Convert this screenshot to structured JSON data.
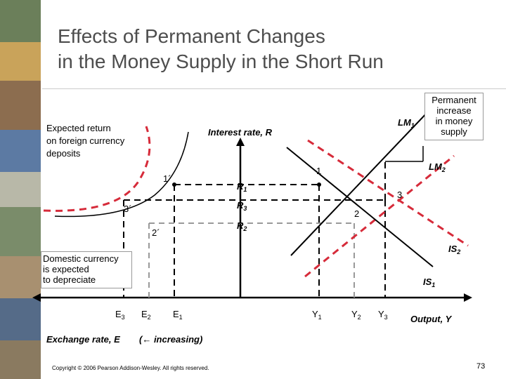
{
  "slide": {
    "title_line1": "Effects of Permanent Changes",
    "title_line2": "in the Money Supply in the Short Run",
    "footer": "Copyright © 2006 Pearson Addison-Wesley. All rights reserved.",
    "page_number": "73"
  },
  "labels": {
    "expected_return_line1": "Expected return",
    "expected_return_line2": "on foreign currency",
    "expected_return_line3": "deposits",
    "interest_rate": "Interest rate, R",
    "lm1": "LM",
    "lm1_sub": "1",
    "lm2": "LM",
    "lm2_sub": "2",
    "permanent_line1": "Permanent",
    "permanent_line2": "increase",
    "permanent_line3": "in money",
    "permanent_line4": "supply",
    "point_1": "1",
    "point_2": "2",
    "point_3": "3",
    "point_1p": "1´",
    "point_2p": "2´",
    "point_3p": "3´",
    "r1": "R",
    "r1_sub": "1",
    "r2": "R",
    "r2_sub": "2",
    "r3": "R",
    "r3_sub": "3",
    "domestic_line1": "Domestic currency",
    "domestic_line2": "is expected",
    "domestic_line3": "to depreciate",
    "is1": "IS",
    "is1_sub": "1",
    "is2": "IS",
    "is2_sub": "2",
    "e1": "E",
    "e1_sub": "1",
    "e2": "E",
    "e2_sub": "2",
    "e3": "E",
    "e3_sub": "3",
    "y1": "Y",
    "y1_sub": "1",
    "y2": "Y",
    "y2_sub": "2",
    "y3": "Y",
    "y3_sub": "3",
    "output": "Output, Y",
    "exchange_rate": "Exchange rate, E",
    "increasing": "(← increasing)"
  },
  "colors": {
    "black_curve": "#000000",
    "red_dashed_curve": "#d62b3a",
    "dashed_guides": "#000000",
    "gray_guide": "#999999",
    "title_text": "#4d4d4d"
  }
}
